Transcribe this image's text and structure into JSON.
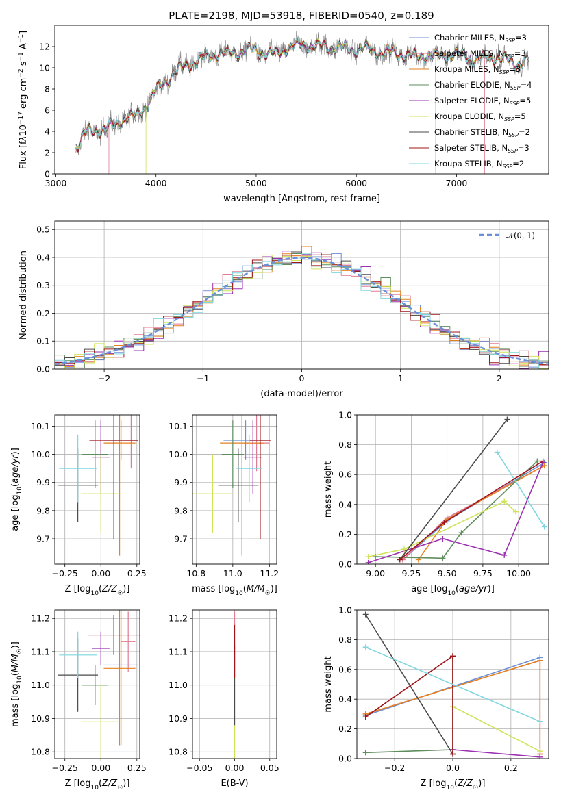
{
  "title": "PLATE=2198, MJD=53918, FIBERID=0540, z=0.189",
  "colors": {
    "Chabrier MILES": "#6b8fd6",
    "Salpeter MILES": "#e07b91",
    "Kroupa MILES": "#e6811f",
    "Chabrier ELODIE": "#5e8e5e",
    "Salpeter ELODIE": "#9b30b0",
    "Kroupa ELODIE": "#cfe357",
    "Chabrier STELIB": "#4a4a4a",
    "Salpeter STELIB": "#a01418",
    "Kroupa STELIB": "#7fd6df",
    "data": "#808080",
    "gaussian": "#6b8fd6"
  },
  "legend_spectrum": [
    {
      "model": "Chabrier MILES",
      "n": "3"
    },
    {
      "model": "Salpeter MILES",
      "n": "3"
    },
    {
      "model": "Kroupa MILES",
      "n": "3"
    },
    {
      "model": "Chabrier ELODIE",
      "n": "4"
    },
    {
      "model": "Salpeter ELODIE",
      "n": "5"
    },
    {
      "model": "Kroupa ELODIE",
      "n": "5"
    },
    {
      "model": "Chabrier STELIB",
      "n": "2"
    },
    {
      "model": "Salpeter STELIB",
      "n": "3"
    },
    {
      "model": "Kroupa STELIB",
      "n": "2"
    }
  ],
  "legend_hist": "𝒩(0, 1)",
  "chart_data": [
    {
      "id": "spectrum",
      "type": "line",
      "xlabel": "wavelength [Angstrom, rest frame]",
      "xlim": [
        2990,
        7920
      ],
      "ylim": [
        0,
        14
      ],
      "xticks": [
        3000,
        4000,
        5000,
        6000,
        7000
      ],
      "yticks": [
        0,
        2,
        4,
        6,
        8,
        10,
        12
      ],
      "continuum": [
        [
          3200,
          2.4
        ],
        [
          3300,
          3.9
        ],
        [
          3400,
          4.1
        ],
        [
          3500,
          4.3
        ],
        [
          3600,
          4.6
        ],
        [
          3700,
          5.3
        ],
        [
          3800,
          5.4
        ],
        [
          3900,
          6.4
        ],
        [
          4000,
          7.8
        ],
        [
          4100,
          8.8
        ],
        [
          4200,
          9.7
        ],
        [
          4300,
          10.2
        ],
        [
          4400,
          10.6
        ],
        [
          4500,
          11.0
        ],
        [
          4600,
          11.4
        ],
        [
          4700,
          11.3
        ],
        [
          4800,
          11.5
        ],
        [
          4900,
          11.6
        ],
        [
          5000,
          11.7
        ],
        [
          5100,
          11.3
        ],
        [
          5200,
          11.3
        ],
        [
          5300,
          11.9
        ],
        [
          5400,
          12.0
        ],
        [
          5500,
          12.2
        ],
        [
          5600,
          12.0
        ],
        [
          5700,
          12.0
        ],
        [
          5800,
          12.0
        ],
        [
          5900,
          11.8
        ],
        [
          6000,
          11.7
        ],
        [
          6100,
          11.8
        ],
        [
          6200,
          11.6
        ],
        [
          6300,
          11.4
        ],
        [
          6400,
          11.4
        ],
        [
          6500,
          11.2
        ],
        [
          6600,
          11.0
        ],
        [
          6700,
          11.3
        ],
        [
          6800,
          11.0
        ],
        [
          6900,
          11.2
        ],
        [
          7000,
          11.3
        ],
        [
          7100,
          11.0
        ],
        [
          7200,
          10.8
        ],
        [
          7300,
          11.0
        ],
        [
          7400,
          11.0
        ],
        [
          7500,
          10.7
        ],
        [
          7600,
          10.4
        ],
        [
          7700,
          10.7
        ]
      ]
    },
    {
      "id": "residuals",
      "type": "step",
      "xlabel": "(data-model)/error",
      "ylabel": "Normed distribution",
      "xlim": [
        -2.5,
        2.5
      ],
      "ylim": [
        0,
        0.53
      ],
      "xticks": [
        -2,
        -1,
        0,
        1,
        2
      ],
      "yticks": [
        0.0,
        0.1,
        0.2,
        0.3,
        0.4,
        0.5
      ],
      "bin_width": 0.1
    },
    {
      "id": "age_vs_Z",
      "type": "scatter",
      "xlabel": "Z [log10(Z/Z☉)]",
      "ylabel": "age  [log10(age/yr)]",
      "xlim": [
        -0.32,
        0.27
      ],
      "ylim": [
        9.61,
        10.14
      ],
      "xticks": [
        -0.25,
        0.0,
        0.25
      ],
      "yticks": [
        9.7,
        9.8,
        9.9,
        10.0,
        10.1
      ],
      "points": [
        {
          "m": "Chabrier MILES",
          "x": 0.14,
          "xerr": 0.12,
          "y": 10.05,
          "yerr": 0.07
        },
        {
          "m": "Salpeter MILES",
          "x": 0.21,
          "xerr": 0.05,
          "y": 10.05,
          "yerr": 0.1
        },
        {
          "m": "Kroupa MILES",
          "x": 0.13,
          "xerr": 0.11,
          "y": 10.04,
          "yerr": 0.4
        },
        {
          "m": "Chabrier ELODIE",
          "x": -0.04,
          "xerr": 0.09,
          "y": 10.0,
          "yerr": 0.12
        },
        {
          "m": "Salpeter ELODIE",
          "x": 0.0,
          "xerr": 0.06,
          "y": 9.99,
          "yerr": 0.13
        },
        {
          "m": "Kroupa ELODIE",
          "x": 0.0,
          "xerr": 0.14,
          "y": 9.86,
          "yerr": 0.14
        },
        {
          "m": "Chabrier STELIB",
          "x": -0.16,
          "xerr": 0.14,
          "y": 9.89,
          "yerr": 0.13
        },
        {
          "m": "Salpeter STELIB",
          "x": 0.09,
          "xerr": 0.17,
          "y": 10.05,
          "yerr": 0.35
        },
        {
          "m": "Kroupa STELIB",
          "x": -0.16,
          "xerr": 0.13,
          "y": 9.95,
          "yerr": 0.12
        }
      ]
    },
    {
      "id": "age_vs_mass",
      "type": "scatter",
      "xlabel": "mass [log10(M/M☉)]",
      "xlim": [
        10.78,
        11.24
      ],
      "ylim": [
        9.61,
        10.14
      ],
      "xticks": [
        10.8,
        11.0,
        11.2
      ],
      "yticks": [
        9.7,
        9.8,
        9.9,
        10.0,
        10.1
      ],
      "points": [
        {
          "m": "Chabrier MILES",
          "x": 11.07,
          "xerr": 0.12,
          "y": 10.05,
          "yerr": 0.07
        },
        {
          "m": "Salpeter MILES",
          "x": 11.13,
          "xerr": 0.07,
          "y": 10.04,
          "yerr": 0.1
        },
        {
          "m": "Kroupa MILES",
          "x": 11.05,
          "xerr": 0.12,
          "y": 10.04,
          "yerr": 0.4
        },
        {
          "m": "Chabrier ELODIE",
          "x": 11.0,
          "xerr": 0.06,
          "y": 10.0,
          "yerr": 0.12
        },
        {
          "m": "Salpeter ELODIE",
          "x": 11.11,
          "xerr": 0.05,
          "y": 9.99,
          "yerr": 0.13
        },
        {
          "m": "Kroupa ELODIE",
          "x": 10.89,
          "xerr": 0.11,
          "y": 9.86,
          "yerr": 0.14
        },
        {
          "m": "Chabrier STELIB",
          "x": 11.03,
          "xerr": 0.11,
          "y": 9.89,
          "yerr": 0.13
        },
        {
          "m": "Salpeter STELIB",
          "x": 11.15,
          "xerr": 0.06,
          "y": 10.05,
          "yerr": 0.35
        },
        {
          "m": "Kroupa STELIB",
          "x": 11.09,
          "xerr": 0.07,
          "y": 9.95,
          "yerr": 0.12
        }
      ]
    },
    {
      "id": "weight_vs_age",
      "type": "line",
      "xlabel": "age  [log10(age/yr)]",
      "ylabel": "mass weight",
      "xlim": [
        8.87,
        10.21
      ],
      "ylim": [
        0,
        1
      ],
      "xticks": [
        9.0,
        9.25,
        9.5,
        9.75,
        10.0
      ],
      "yticks": [
        0.0,
        0.2,
        0.4,
        0.6,
        0.8,
        1.0
      ],
      "series": [
        {
          "m": "Chabrier MILES",
          "x": [
            9.19,
            9.5,
            10.18
          ],
          "y": [
            0.03,
            0.29,
            0.68
          ]
        },
        {
          "m": "Salpeter MILES",
          "x": [
            9.19,
            9.5,
            10.18
          ],
          "y": [
            0.03,
            0.31,
            0.66
          ]
        },
        {
          "m": "Kroupa MILES",
          "x": [
            9.3,
            9.5,
            10.18
          ],
          "y": [
            0.03,
            0.3,
            0.66
          ]
        },
        {
          "m": "Chabrier ELODIE",
          "x": [
            9.0,
            9.47,
            9.6,
            10.13
          ],
          "y": [
            0.05,
            0.04,
            0.21,
            0.69
          ]
        },
        {
          "m": "Salpeter ELODIE",
          "x": [
            8.95,
            9.47,
            9.9,
            10.17
          ],
          "y": [
            0.01,
            0.17,
            0.06,
            0.68
          ]
        },
        {
          "m": "Kroupa ELODIE",
          "x": [
            8.95,
            9.2,
            9.9,
            9.98
          ],
          "y": [
            0.05,
            0.1,
            0.42,
            0.35
          ]
        },
        {
          "m": "Chabrier STELIB",
          "x": [
            9.17,
            9.92
          ],
          "y": [
            0.03,
            0.97
          ]
        },
        {
          "m": "Salpeter STELIB",
          "x": [
            9.17,
            9.48,
            10.17
          ],
          "y": [
            0.03,
            0.28,
            0.69
          ]
        },
        {
          "m": "Kroupa STELIB",
          "x": [
            9.85,
            10.18
          ],
          "y": [
            0.75,
            0.25
          ]
        }
      ]
    },
    {
      "id": "mass_vs_Z",
      "type": "scatter",
      "xlabel": "Z [log10(Z/Z☉)]",
      "ylabel": "mass [log10(M/M☉)]",
      "xlim": [
        -0.32,
        0.27
      ],
      "ylim": [
        10.78,
        11.225
      ],
      "xticks": [
        -0.25,
        0.0,
        0.25
      ],
      "yticks": [
        10.8,
        10.9,
        11.0,
        11.1,
        11.2
      ],
      "points": [
        {
          "m": "Chabrier MILES",
          "x": 0.14,
          "xerr": 0.12,
          "y": 11.06,
          "yerr": 0.24
        },
        {
          "m": "Salpeter MILES",
          "x": 0.19,
          "xerr": 0.05,
          "y": 11.13,
          "yerr": 0.09
        },
        {
          "m": "Kroupa MILES",
          "x": 0.13,
          "xerr": 0.11,
          "y": 11.05,
          "yerr": 0.23
        },
        {
          "m": "Chabrier ELODIE",
          "x": -0.04,
          "xerr": 0.09,
          "y": 11.0,
          "yerr": 0.06
        },
        {
          "m": "Salpeter ELODIE",
          "x": 0.0,
          "xerr": 0.06,
          "y": 11.11,
          "yerr": 0.05
        },
        {
          "m": "Kroupa ELODIE",
          "x": 0.0,
          "xerr": 0.14,
          "y": 10.89,
          "yerr": 0.11
        },
        {
          "m": "Chabrier STELIB",
          "x": -0.16,
          "xerr": 0.14,
          "y": 11.03,
          "yerr": 0.11
        },
        {
          "m": "Salpeter STELIB",
          "x": 0.09,
          "xerr": 0.18,
          "y": 11.15,
          "yerr": 0.06
        },
        {
          "m": "Kroupa STELIB",
          "x": -0.16,
          "xerr": 0.13,
          "y": 11.09,
          "yerr": 0.07
        }
      ]
    },
    {
      "id": "mass_vs_ebv",
      "type": "scatter",
      "xlabel": "E(B-V)",
      "xlim": [
        -0.06,
        0.06
      ],
      "ylim": [
        10.78,
        11.225
      ],
      "xticks": [
        -0.05,
        0.0,
        0.05
      ],
      "yticks": [
        10.8,
        10.9,
        11.0,
        11.1,
        11.2
      ],
      "points": [
        {
          "m": "Salpeter MILES",
          "x": 0.0,
          "y": 11.13,
          "yerr": 0.09
        },
        {
          "m": "Kroupa ELODIE",
          "x": 0.0,
          "y": 10.89,
          "yerr": 0.11
        },
        {
          "m": "Kroupa STELIB",
          "x": 0.0,
          "y": 11.0,
          "yerr": 0.12
        },
        {
          "m": "Chabrier STELIB",
          "x": 0.0,
          "y": 11.0,
          "yerr": 0.12
        },
        {
          "m": "Salpeter STELIB",
          "x": 0.0,
          "y": 11.1,
          "yerr": 0.08
        }
      ]
    },
    {
      "id": "weight_vs_Z",
      "type": "line",
      "xlabel": "Z [log10(Z/Z☉)]",
      "ylabel": "mass weight",
      "xlim": [
        -0.33,
        0.33
      ],
      "ylim": [
        0,
        1
      ],
      "xticks": [
        -0.2,
        0.0,
        0.2
      ],
      "yticks": [
        0.0,
        0.2,
        0.4,
        0.6,
        0.8,
        1.0
      ],
      "series": [
        {
          "m": "Chabrier MILES",
          "x": [
            -0.3,
            0.3
          ],
          "y": [
            0.29,
            0.68
          ]
        },
        {
          "m": "Salpeter MILES",
          "x": [
            -0.3,
            0.3,
            0.3
          ],
          "y": [
            0.3,
            0.66,
            0.03
          ]
        },
        {
          "m": "Kroupa MILES",
          "x": [
            -0.3,
            0.3,
            0.3
          ],
          "y": [
            0.3,
            0.66,
            0.03
          ]
        },
        {
          "m": "Chabrier ELODIE",
          "x": [
            -0.3,
            0.0,
            0.0
          ],
          "y": [
            0.04,
            0.06,
            0.69
          ]
        },
        {
          "m": "Salpeter ELODIE",
          "x": [
            0.0,
            0.3
          ],
          "y": [
            0.06,
            0.01
          ]
        },
        {
          "m": "Kroupa ELODIE",
          "x": [
            0.0,
            0.3
          ],
          "y": [
            0.35,
            0.05
          ]
        },
        {
          "m": "Chabrier STELIB",
          "x": [
            -0.3,
            0.0
          ],
          "y": [
            0.97,
            0.03
          ]
        },
        {
          "m": "Salpeter STELIB",
          "x": [
            -0.3,
            0.0,
            0.0
          ],
          "y": [
            0.28,
            0.69,
            0.03
          ]
        },
        {
          "m": "Kroupa STELIB",
          "x": [
            -0.3,
            0.3
          ],
          "y": [
            0.75,
            0.25
          ]
        }
      ]
    }
  ]
}
